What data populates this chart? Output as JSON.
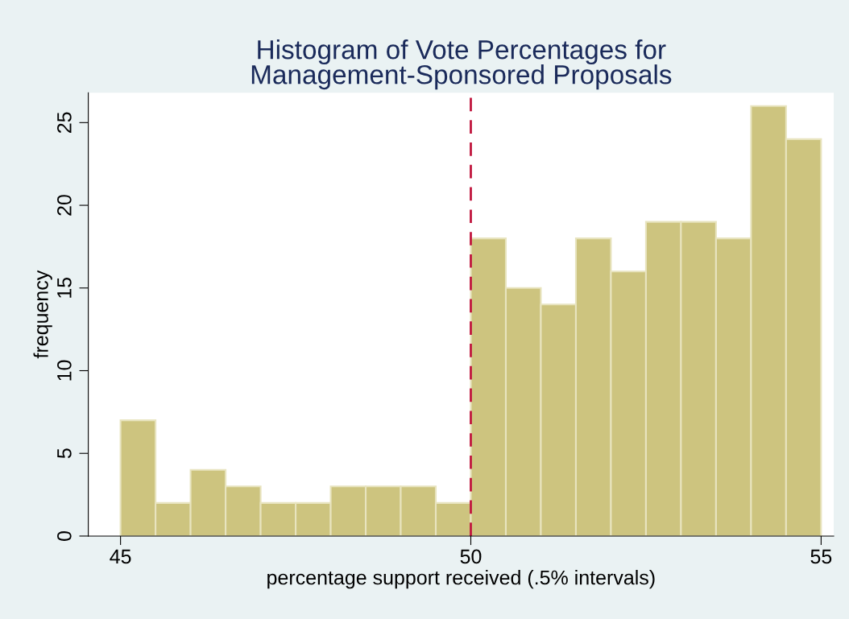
{
  "chart_data": {
    "type": "histogram",
    "title": "Histogram of Vote Percentages for\nManagement-Sponsored Proposals",
    "xlabel": "percentage support received (.5% intervals)",
    "ylabel": "frequency",
    "bins": [
      45,
      45.5,
      46,
      46.5,
      47,
      47.5,
      48,
      48.5,
      49,
      49.5,
      50,
      50.5,
      51,
      51.5,
      52,
      52.5,
      53,
      53.5,
      54,
      54.5,
      55
    ],
    "values": [
      7,
      2,
      4,
      3,
      2,
      2,
      3,
      3,
      3,
      2,
      18,
      15,
      14,
      18,
      16,
      19,
      19,
      18,
      26,
      24
    ],
    "color": "#cdc47f",
    "xlim": [
      44.54,
      55.18
    ],
    "xticks": [
      45,
      50,
      55
    ],
    "ylim": [
      0,
      26.8
    ],
    "yticks": [
      0,
      5,
      10,
      15,
      20,
      25
    ],
    "ref_lines": [
      {
        "axis": "x",
        "value": 50,
        "color": "#c0143c",
        "line_style": "dashed"
      }
    ],
    "grid": false
  }
}
